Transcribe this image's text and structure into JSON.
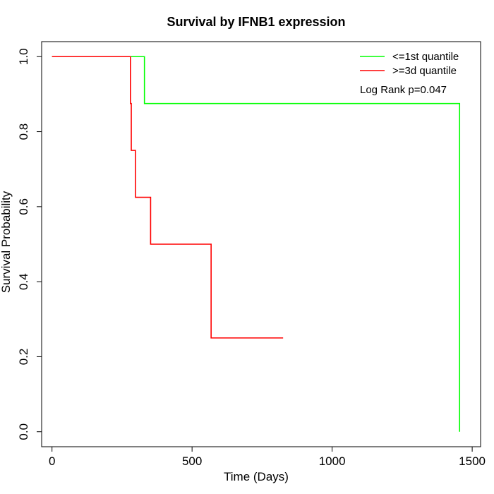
{
  "chart_data": {
    "type": "line",
    "title": "Survival by IFNB1 expression",
    "xlabel": "Time (Days)",
    "ylabel": "Survival Probability",
    "xlim": [
      -37,
      1530
    ],
    "ylim": [
      -0.04,
      1.04
    ],
    "x_ticks": [
      0,
      500,
      1000,
      1500
    ],
    "x_tick_labels": [
      "0",
      "500",
      "1000",
      "1500"
    ],
    "y_ticks": [
      0.0,
      0.2,
      0.4,
      0.6,
      0.8,
      1.0
    ],
    "y_tick_labels": [
      "0.0",
      "0.2",
      "0.4",
      "0.6",
      "0.8",
      "1.0"
    ],
    "annotation": "Log Rank p=0.047",
    "legend_position": "top-right",
    "grid": false,
    "series": [
      {
        "name": "<=1st quantile",
        "color": "#00ff00",
        "step": true,
        "x": [
          0,
          330,
          1455,
          1455
        ],
        "y": [
          1.0,
          0.875,
          0.875,
          0.0
        ]
      },
      {
        "name": ">=3d quantile",
        "color": "#ff0000",
        "step": true,
        "x": [
          0,
          280,
          283,
          298,
          352,
          568,
          825
        ],
        "y": [
          1.0,
          0.875,
          0.75,
          0.625,
          0.5,
          0.25,
          0.25
        ]
      }
    ]
  }
}
